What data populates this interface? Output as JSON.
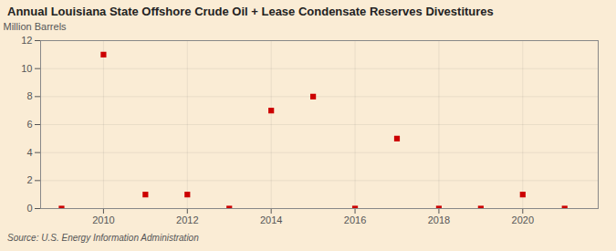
{
  "chart_data": {
    "type": "scatter",
    "title": "Annual Louisiana State Offshore Crude Oil + Lease Condensate Reserves Divestitures",
    "ylabel": "Million Barrels",
    "annotation": "Source: U.S. Energy Information Administration",
    "x": [
      2009,
      2010,
      2011,
      2012,
      2013,
      2014,
      2015,
      2016,
      2017,
      2018,
      2019,
      2020,
      2021
    ],
    "values": [
      0,
      11,
      1,
      1,
      0,
      7,
      8,
      0,
      5,
      0,
      0,
      1,
      0
    ],
    "color": "#cc0000",
    "marker": "square",
    "xlim": [
      2008.5,
      2021.8
    ],
    "xticks": [
      2010,
      2012,
      2014,
      2016,
      2018,
      2020
    ],
    "ylim": [
      0,
      12
    ],
    "yticks": [
      0,
      2,
      4,
      6,
      8,
      10,
      12
    ],
    "grid": true
  }
}
